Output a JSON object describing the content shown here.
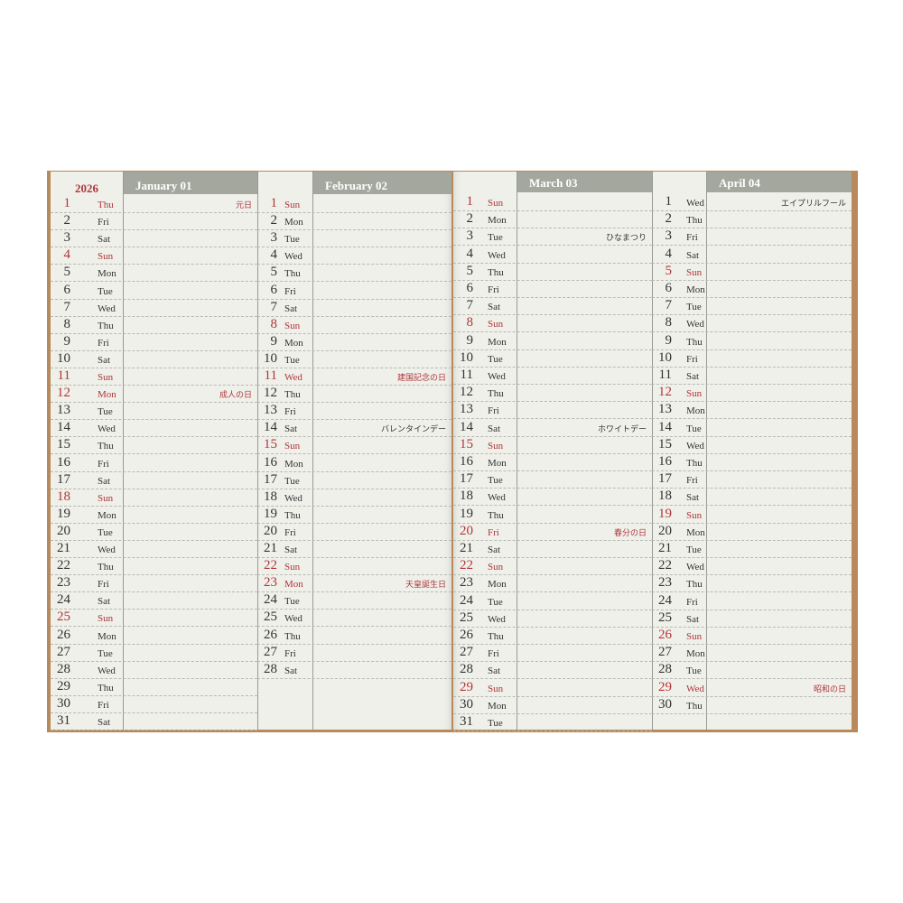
{
  "year": "2026",
  "accent": "#b0353a",
  "months": [
    {
      "title": "January 01",
      "weekdays": [
        "Thu",
        "Fri",
        "Sat",
        "Sun",
        "Mon",
        "Tue",
        "Wed",
        "Thu",
        "Fri",
        "Sat",
        "Sun",
        "Mon",
        "Tue",
        "Wed",
        "Thu",
        "Fri",
        "Sat",
        "Sun",
        "Mon",
        "Tue",
        "Wed",
        "Thu",
        "Fri",
        "Sat",
        "Sun",
        "Mon",
        "Tue",
        "Wed",
        "Thu",
        "Fri",
        "Sat"
      ],
      "holidays": [
        {
          "day": 1,
          "label": "元日",
          "red": true
        },
        {
          "day": 12,
          "label": "成人の日",
          "red": true
        }
      ]
    },
    {
      "title": "February 02",
      "weekdays": [
        "Sun",
        "Mon",
        "Tue",
        "Wed",
        "Thu",
        "Fri",
        "Sat",
        "Sun",
        "Mon",
        "Tue",
        "Wed",
        "Thu",
        "Fri",
        "Sat",
        "Sun",
        "Mon",
        "Tue",
        "Wed",
        "Thu",
        "Fri",
        "Sat",
        "Sun",
        "Mon",
        "Tue",
        "Wed",
        "Thu",
        "Fri",
        "Sat"
      ],
      "holidays": [
        {
          "day": 11,
          "label": "建国記念の日",
          "red": true
        },
        {
          "day": 14,
          "label": "バレンタインデー",
          "red": false
        },
        {
          "day": 23,
          "label": "天皇誕生日",
          "red": true
        }
      ]
    },
    {
      "title": "March 03",
      "weekdays": [
        "Sun",
        "Mon",
        "Tue",
        "Wed",
        "Thu",
        "Fri",
        "Sat",
        "Sun",
        "Mon",
        "Tue",
        "Wed",
        "Thu",
        "Fri",
        "Sat",
        "Sun",
        "Mon",
        "Tue",
        "Wed",
        "Thu",
        "Fri",
        "Sat",
        "Sun",
        "Mon",
        "Tue",
        "Wed",
        "Thu",
        "Fri",
        "Sat",
        "Sun",
        "Mon",
        "Tue"
      ],
      "holidays": [
        {
          "day": 3,
          "label": "ひなまつり",
          "red": false
        },
        {
          "day": 14,
          "label": "ホワイトデー",
          "red": false
        },
        {
          "day": 20,
          "label": "春分の日",
          "red": true
        }
      ]
    },
    {
      "title": "April 04",
      "weekdays": [
        "Wed",
        "Thu",
        "Fri",
        "Sat",
        "Sun",
        "Mon",
        "Tue",
        "Wed",
        "Thu",
        "Fri",
        "Sat",
        "Sun",
        "Mon",
        "Tue",
        "Wed",
        "Thu",
        "Fri",
        "Sat",
        "Sun",
        "Mon",
        "Tue",
        "Wed",
        "Thu",
        "Fri",
        "Sat",
        "Sun",
        "Mon",
        "Tue",
        "Wed",
        "Thu"
      ],
      "holidays": [
        {
          "day": 1,
          "label": "エイプリルフール",
          "red": false
        },
        {
          "day": 29,
          "label": "昭和の日",
          "red": true
        }
      ]
    }
  ]
}
